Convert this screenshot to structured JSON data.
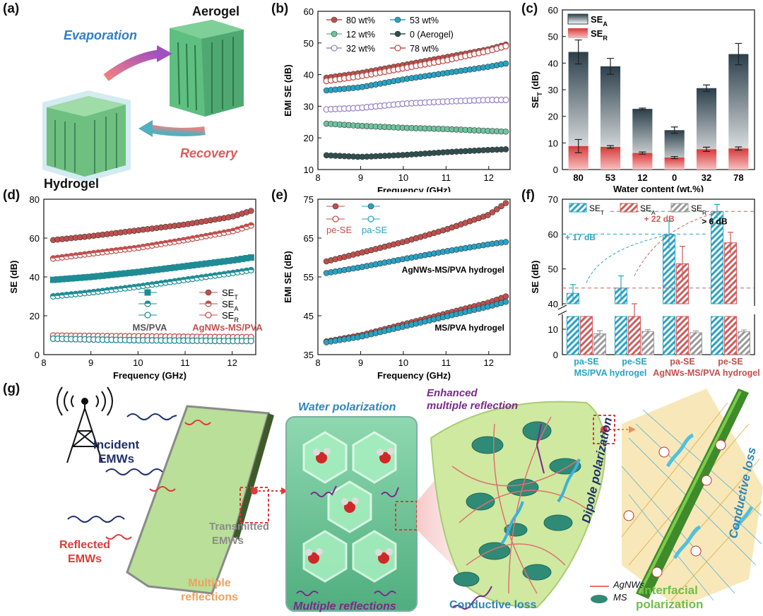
{
  "panel_letters": [
    "(a)",
    "(b)",
    "(c)",
    "(d)",
    "(e)",
    "(f)",
    "(g)"
  ],
  "panel_a": {
    "aerogel": "Aerogel",
    "hydrogel": "Hydrogel",
    "evaporation": "Evaporation",
    "recovery": "Recovery",
    "colors": {
      "evaporation": "#2f7ec8",
      "recovery": "#e05a5a",
      "structure": "#5fb680"
    }
  },
  "panel_g": {
    "incident": "Incident",
    "emws": "EMWs",
    "reflected": "Reflected",
    "transmitted": "Transmitted",
    "multiple": "Multiple",
    "reflections": "reflections",
    "water_polarization": "Water polarization",
    "multiple_reflections": "Multiple reflections",
    "enhanced": "Enhanced",
    "enhanced_multiple": "multiple reflection",
    "conductive_loss": "Conductive loss",
    "agnws": "AgNWs",
    "ms": "MS",
    "dipole_polarization": "Dipole polarization",
    "interfacial": "Interfacial",
    "polarization": "polarization",
    "conductive_loss_2": "Conductive loss",
    "colors": {
      "navy": "#1f2f6b",
      "red": "#e03a3a",
      "gray": "#8a8a8a",
      "orange": "#f0a060",
      "purple": "#7a2a8a",
      "teal": "#2e86b8",
      "green": "#6fbf4a",
      "sheet": "#a8d88a"
    }
  },
  "chart_data": [
    {
      "id": "b",
      "type": "scatter",
      "xlabel": "Frequency (GHz)",
      "ylabel": "EMI SE (dB)",
      "xlim": [
        8.2,
        12.4
      ],
      "ylim": [
        10,
        60
      ],
      "xticks": [
        "8",
        "9",
        "10",
        "11",
        "12"
      ],
      "yticks": [
        "10",
        "20",
        "30",
        "40",
        "50",
        "60"
      ],
      "x": [
        8.2,
        9.0,
        10.0,
        11.0,
        12.0,
        12.4
      ],
      "legend": [
        "80 wt%",
        "53 wt%",
        "12 wt%",
        "0  (Aerogel)",
        "32 wt%",
        "78 wt%"
      ],
      "series": [
        {
          "name": "80 wt%",
          "color": "#c0504d",
          "filled": true,
          "values": [
            39,
            40.5,
            43,
            45.5,
            48,
            49.5
          ]
        },
        {
          "name": "53 wt%",
          "color": "#27a3c4",
          "filled": true,
          "values": [
            35,
            36,
            38.5,
            40.5,
            42.5,
            43.5
          ]
        },
        {
          "name": "12 wt%",
          "color": "#6ec4a0",
          "filled": true,
          "values": [
            24.5,
            23.8,
            23.2,
            22.8,
            22.2,
            22
          ]
        },
        {
          "name": "0  (Aerogel)",
          "color": "#2f4f4f",
          "filled": true,
          "values": [
            14.5,
            14,
            14.6,
            15.5,
            16.2,
            16.4
          ]
        },
        {
          "name": "32 wt%",
          "color": "#9a88c8",
          "filled": false,
          "values": [
            29,
            29.5,
            30.8,
            31.5,
            32,
            32
          ]
        },
        {
          "name": "78 wt%",
          "color": "#c0504d",
          "filled": false,
          "values": [
            38,
            39.5,
            42,
            44.5,
            47.5,
            49
          ]
        }
      ]
    },
    {
      "id": "c",
      "type": "bar",
      "xlabel": "Water content (wt.%)",
      "ylabel": "SE_T (dB)",
      "ylim": [
        0,
        60
      ],
      "yticks": [
        "0",
        "10",
        "20",
        "30",
        "40",
        "50",
        "60"
      ],
      "categories": [
        "80",
        "53",
        "12",
        "0",
        "32",
        "78"
      ],
      "legend": [
        "SE_A",
        "SE_R"
      ],
      "series": [
        {
          "name": "SE_A",
          "color": "#2b3f4a",
          "values": [
            44.2,
            38.8,
            22.8,
            14.8,
            30.6,
            43.4
          ],
          "errors": [
            4.5,
            3,
            0.3,
            1.2,
            1.2,
            4
          ]
        },
        {
          "name": "SE_R",
          "color": "#e06666",
          "values": [
            8.8,
            8.5,
            6.2,
            4.5,
            7.6,
            7.9
          ],
          "errors": [
            2.5,
            0.5,
            0.4,
            0.4,
            0.8,
            0.6
          ]
        }
      ]
    },
    {
      "id": "d",
      "type": "scatter",
      "xlabel": "Frequency (GHz)",
      "ylabel": "SE (dB)",
      "xlim": [
        8.2,
        12.4
      ],
      "ylim": [
        0,
        80
      ],
      "xticks": [
        "8",
        "9",
        "10",
        "11",
        "12"
      ],
      "yticks": [
        "0",
        "20",
        "40",
        "60",
        "80"
      ],
      "x": [
        8.2,
        9.0,
        10.0,
        11.0,
        12.0,
        12.4
      ],
      "legend": [
        "SE_T",
        "SE_A",
        "SE_R"
      ],
      "legend_groups": [
        "MS/PVA",
        "AgNWs-MS/PVA"
      ],
      "series": [
        {
          "name": "AgNWs SE_T",
          "color": "#c0504d",
          "marker": "filled",
          "values": [
            59,
            61,
            64,
            67,
            71,
            74
          ]
        },
        {
          "name": "AgNWs SE_A",
          "color": "#c0504d",
          "marker": "half",
          "values": [
            49.5,
            52,
            55,
            59,
            63.5,
            66.5
          ]
        },
        {
          "name": "MS/PVA SE_T",
          "color": "#1f8c94",
          "marker": "square",
          "values": [
            38.5,
            40,
            42.5,
            45.5,
            48.5,
            50
          ]
        },
        {
          "name": "MS/PVA SE_A",
          "color": "#1f8c94",
          "marker": "half",
          "values": [
            30,
            32,
            35,
            38.5,
            42,
            43.5
          ]
        },
        {
          "name": "AgNWs SE_R",
          "color": "#c0504d",
          "marker": "open",
          "values": [
            9.8,
            9.6,
            9.4,
            9.2,
            9,
            9
          ]
        },
        {
          "name": "MS/PVA SE_R",
          "color": "#1f8c94",
          "marker": "open",
          "values": [
            8.2,
            7.8,
            7.4,
            7.2,
            7,
            7
          ]
        }
      ]
    },
    {
      "id": "e",
      "type": "scatter",
      "xlabel": "Frequency (GHz)",
      "ylabel": "EMI SE (dB)",
      "xlim": [
        8.2,
        12.4
      ],
      "ylim": [
        35,
        75
      ],
      "xticks": [
        "8",
        "9",
        "10",
        "11",
        "12"
      ],
      "yticks": [
        "35",
        "45",
        "55",
        "65",
        "75"
      ],
      "x": [
        8.2,
        9.0,
        10.0,
        11.0,
        12.0,
        12.4
      ],
      "legend": [
        "pe-SE",
        "pa-SE"
      ],
      "annotations": [
        "AgNWs-MS/PVA hydrogel",
        "MS/PVA hydrogel"
      ],
      "series": [
        {
          "name": "AgNWs pe-SE",
          "color": "#c0504d",
          "values": [
            59,
            61.2,
            64,
            67.2,
            71,
            74
          ]
        },
        {
          "name": "AgNWs pa-SE",
          "color": "#27a3c4",
          "values": [
            56,
            57.5,
            59.6,
            61.6,
            63.4,
            64
          ]
        },
        {
          "name": "MS/PVA pe-SE",
          "color": "#c0504d",
          "values": [
            38.4,
            40,
            42.8,
            45.6,
            48.4,
            50
          ]
        },
        {
          "name": "MS/PVA pa-SE",
          "color": "#27a3c4",
          "values": [
            38.2,
            39.6,
            42.2,
            44.8,
            47.4,
            48.6
          ]
        }
      ]
    },
    {
      "id": "f",
      "type": "bar",
      "ylabel": "SE (dB)",
      "ylim": [
        0,
        70
      ],
      "yticks": [
        "0",
        "10",
        "40",
        "50",
        "60",
        "70"
      ],
      "categories": [
        "pa-SE",
        "pe-SE",
        "pa-SE",
        "pe-SE"
      ],
      "group_labels": [
        "MS/PVA hydrogel",
        "AgNWs-MS/PVA hydrogel"
      ],
      "legend": [
        "SE_T",
        "SE_A",
        "SE_R"
      ],
      "annotations": [
        "+ 22 dB",
        "> 6 dB",
        "+ 17 dB"
      ],
      "series": [
        {
          "name": "SE_T",
          "color": "#27a3c4",
          "values": [
            43,
            44.5,
            59.8,
            66.5
          ],
          "errors": [
            2.5,
            3.5,
            4,
            2
          ]
        },
        {
          "name": "SE_A",
          "color": "#d05a5a",
          "values": [
            34.5,
            35.5,
            51.5,
            57.5
          ],
          "errors": [
            4.5,
            4.5,
            5,
            3
          ]
        },
        {
          "name": "SE_R",
          "color": "#9a9a9a",
          "values": [
            8.2,
            9.1,
            8.6,
            9
          ],
          "errors": [
            1.2,
            0.7,
            0.7,
            0.7
          ]
        }
      ]
    }
  ]
}
